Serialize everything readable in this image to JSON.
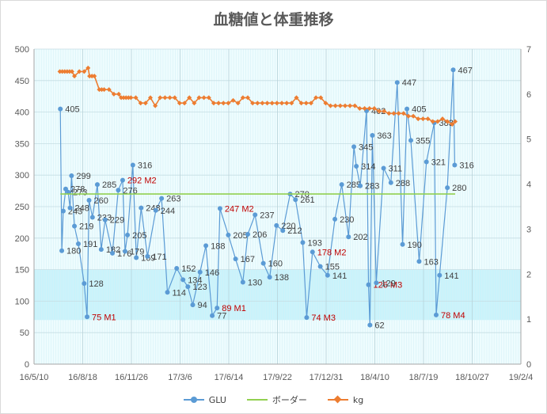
{
  "chart_data": {
    "type": "line",
    "title": "血糖値と体重推移",
    "x_axis": {
      "min": "2016-05-10",
      "max": "2019-02-04",
      "tick_labels": [
        "16/5/10",
        "16/8/18",
        "16/11/26",
        "17/3/6",
        "17/6/14",
        "17/9/22",
        "17/12/31",
        "18/4/10",
        "18/7/19",
        "18/10/27",
        "19/2/4"
      ]
    },
    "y_axis_left": {
      "min": 0,
      "max": 500,
      "ticks": [
        0,
        50,
        100,
        150,
        200,
        250,
        300,
        350,
        400,
        450,
        500
      ]
    },
    "y_axis_right": {
      "min": 0,
      "max": 7,
      "ticks": [
        0,
        1,
        2,
        3,
        4,
        5,
        6,
        7
      ]
    },
    "shaded_band": {
      "from": 70,
      "to": 150,
      "color": "#c9f3fb"
    },
    "plot_background": "#eefcfe",
    "grid": true,
    "legend_position": "bottom",
    "series": [
      {
        "name": "GLU",
        "axis": "left",
        "color": "#5b9bd5",
        "points": [
          {
            "x": "2016-07-03",
            "y": 405,
            "label": "405"
          },
          {
            "x": "2016-07-06",
            "y": 180,
            "label": "180"
          },
          {
            "x": "2016-07-09",
            "y": 243,
            "label": "243"
          },
          {
            "x": "2016-07-14",
            "y": 278,
            "label": "278"
          },
          {
            "x": "2016-07-19",
            "y": 273,
            "label": "273"
          },
          {
            "x": "2016-07-23",
            "y": 248,
            "label": "248"
          },
          {
            "x": "2016-07-26",
            "y": 299,
            "label": "299"
          },
          {
            "x": "2016-08-01",
            "y": 219,
            "label": "219"
          },
          {
            "x": "2016-08-09",
            "y": 191,
            "label": "191"
          },
          {
            "x": "2016-08-21",
            "y": 128,
            "label": "128"
          },
          {
            "x": "2016-08-27",
            "y": 75,
            "label": "75 M1",
            "note": true
          },
          {
            "x": "2016-08-31",
            "y": 260,
            "label": "260"
          },
          {
            "x": "2016-09-07",
            "y": 233,
            "label": "233"
          },
          {
            "x": "2016-09-17",
            "y": 285,
            "label": "285"
          },
          {
            "x": "2016-09-25",
            "y": 182,
            "label": "182"
          },
          {
            "x": "2016-10-03",
            "y": 229,
            "label": "229"
          },
          {
            "x": "2016-10-18",
            "y": 176,
            "label": "176"
          },
          {
            "x": "2016-10-30",
            "y": 276,
            "label": "276"
          },
          {
            "x": "2016-11-08",
            "y": 292,
            "label": "292 M2",
            "note": true
          },
          {
            "x": "2016-11-13",
            "y": 179,
            "label": "179"
          },
          {
            "x": "2016-11-18",
            "y": 205,
            "label": "205"
          },
          {
            "x": "2016-11-29",
            "y": 316,
            "label": "316"
          },
          {
            "x": "2016-12-06",
            "y": 169,
            "label": "169"
          },
          {
            "x": "2016-12-16",
            "y": 248,
            "label": "248"
          },
          {
            "x": "2016-12-29",
            "y": 171,
            "label": "171"
          },
          {
            "x": "2017-01-15",
            "y": 244,
            "label": "244"
          },
          {
            "x": "2017-01-27",
            "y": 263,
            "label": "263"
          },
          {
            "x": "2017-02-08",
            "y": 114,
            "label": "114"
          },
          {
            "x": "2017-02-27",
            "y": 152,
            "label": "152"
          },
          {
            "x": "2017-03-12",
            "y": 134,
            "label": "134"
          },
          {
            "x": "2017-03-22",
            "y": 123,
            "label": "123"
          },
          {
            "x": "2017-04-01",
            "y": 94,
            "label": "94"
          },
          {
            "x": "2017-04-16",
            "y": 146,
            "label": "146"
          },
          {
            "x": "2017-04-28",
            "y": 188,
            "label": "188"
          },
          {
            "x": "2017-05-11",
            "y": 77,
            "label": "77"
          },
          {
            "x": "2017-05-21",
            "y": 89,
            "label": "89 M1",
            "note": true
          },
          {
            "x": "2017-05-27",
            "y": 247,
            "label": "247 M2",
            "note": true
          },
          {
            "x": "2017-06-13",
            "y": 205,
            "label": "205"
          },
          {
            "x": "2017-06-28",
            "y": 167,
            "label": "167"
          },
          {
            "x": "2017-07-13",
            "y": 130,
            "label": "130"
          },
          {
            "x": "2017-07-23",
            "y": 206,
            "label": "206"
          },
          {
            "x": "2017-08-07",
            "y": 237,
            "label": "237"
          },
          {
            "x": "2017-08-24",
            "y": 160,
            "label": "160"
          },
          {
            "x": "2017-09-06",
            "y": 138,
            "label": "138"
          },
          {
            "x": "2017-09-20",
            "y": 220,
            "label": "220"
          },
          {
            "x": "2017-10-03",
            "y": 212,
            "label": "212"
          },
          {
            "x": "2017-10-18",
            "y": 270,
            "label": "270"
          },
          {
            "x": "2017-10-29",
            "y": 261,
            "label": "261"
          },
          {
            "x": "2017-11-13",
            "y": 193,
            "label": "193"
          },
          {
            "x": "2017-11-21",
            "y": 74,
            "label": "74 M3",
            "note": true
          },
          {
            "x": "2017-12-03",
            "y": 178,
            "label": "178 M2",
            "note": true
          },
          {
            "x": "2017-12-19",
            "y": 155,
            "label": "155"
          },
          {
            "x": "2018-01-03",
            "y": 141,
            "label": "141"
          },
          {
            "x": "2018-01-18",
            "y": 230,
            "label": "230"
          },
          {
            "x": "2018-02-01",
            "y": 285,
            "label": "285"
          },
          {
            "x": "2018-02-15",
            "y": 202,
            "label": "202"
          },
          {
            "x": "2018-02-26",
            "y": 345,
            "label": "345"
          },
          {
            "x": "2018-03-03",
            "y": 314,
            "label": "314"
          },
          {
            "x": "2018-03-11",
            "y": 283,
            "label": "283"
          },
          {
            "x": "2018-03-24",
            "y": 402,
            "label": "402"
          },
          {
            "x": "2018-03-28",
            "y": 126,
            "label": "126 M3",
            "note": true
          },
          {
            "x": "2018-03-31",
            "y": 62,
            "label": "62"
          },
          {
            "x": "2018-04-05",
            "y": 363,
            "label": "363"
          },
          {
            "x": "2018-04-13",
            "y": 129,
            "label": "129"
          },
          {
            "x": "2018-04-28",
            "y": 311,
            "label": "311"
          },
          {
            "x": "2018-05-13",
            "y": 288,
            "label": "288"
          },
          {
            "x": "2018-05-26",
            "y": 447,
            "label": "447"
          },
          {
            "x": "2018-06-06",
            "y": 190,
            "label": "190"
          },
          {
            "x": "2018-06-15",
            "y": 405,
            "label": "405"
          },
          {
            "x": "2018-06-23",
            "y": 355,
            "label": "355"
          },
          {
            "x": "2018-07-10",
            "y": 163,
            "label": "163"
          },
          {
            "x": "2018-07-25",
            "y": 321,
            "label": "321"
          },
          {
            "x": "2018-08-10",
            "y": 383,
            "label": "383"
          },
          {
            "x": "2018-08-14",
            "y": 78,
            "label": "78 M4",
            "note": true
          },
          {
            "x": "2018-08-21",
            "y": 141,
            "label": "141"
          },
          {
            "x": "2018-09-06",
            "y": 280,
            "label": "280"
          },
          {
            "x": "2018-09-18",
            "y": 467,
            "label": "467"
          },
          {
            "x": "2018-09-21",
            "y": 316,
            "label": "316"
          }
        ]
      },
      {
        "name": "ボーダー",
        "axis": "left",
        "color": "#92d050",
        "points": [
          {
            "x": "2016-07-03",
            "y": 270
          },
          {
            "x": "2018-09-22",
            "y": 270
          }
        ]
      },
      {
        "name": "kg",
        "axis": "right",
        "color": "#ed7d31",
        "points": [
          {
            "x": "2016-07-02",
            "y": 6.5
          },
          {
            "x": "2016-07-07",
            "y": 6.5
          },
          {
            "x": "2016-07-12",
            "y": 6.5
          },
          {
            "x": "2016-07-17",
            "y": 6.5
          },
          {
            "x": "2016-07-22",
            "y": 6.5
          },
          {
            "x": "2016-07-27",
            "y": 6.5
          },
          {
            "x": "2016-08-01",
            "y": 6.4
          },
          {
            "x": "2016-08-11",
            "y": 6.5
          },
          {
            "x": "2016-08-21",
            "y": 6.5
          },
          {
            "x": "2016-08-29",
            "y": 6.58
          },
          {
            "x": "2016-09-01",
            "y": 6.4
          },
          {
            "x": "2016-09-06",
            "y": 6.4
          },
          {
            "x": "2016-09-11",
            "y": 6.4
          },
          {
            "x": "2016-09-21",
            "y": 6.1
          },
          {
            "x": "2016-09-26",
            "y": 6.1
          },
          {
            "x": "2016-10-01",
            "y": 6.1
          },
          {
            "x": "2016-10-11",
            "y": 6.1
          },
          {
            "x": "2016-10-21",
            "y": 6.0
          },
          {
            "x": "2016-10-31",
            "y": 6.0
          },
          {
            "x": "2016-11-05",
            "y": 5.92
          },
          {
            "x": "2016-11-10",
            "y": 5.92
          },
          {
            "x": "2016-11-15",
            "y": 5.92
          },
          {
            "x": "2016-11-20",
            "y": 5.92
          },
          {
            "x": "2016-11-25",
            "y": 5.92
          },
          {
            "x": "2016-12-05",
            "y": 5.92
          },
          {
            "x": "2016-12-15",
            "y": 5.8
          },
          {
            "x": "2016-12-25",
            "y": 5.8
          },
          {
            "x": "2017-01-04",
            "y": 5.92
          },
          {
            "x": "2017-01-14",
            "y": 5.74
          },
          {
            "x": "2017-01-24",
            "y": 5.92
          },
          {
            "x": "2017-02-03",
            "y": 5.92
          },
          {
            "x": "2017-02-13",
            "y": 5.92
          },
          {
            "x": "2017-02-23",
            "y": 5.92
          },
          {
            "x": "2017-03-05",
            "y": 5.8
          },
          {
            "x": "2017-03-15",
            "y": 5.8
          },
          {
            "x": "2017-03-25",
            "y": 5.92
          },
          {
            "x": "2017-04-04",
            "y": 5.8
          },
          {
            "x": "2017-04-14",
            "y": 5.92
          },
          {
            "x": "2017-04-24",
            "y": 5.92
          },
          {
            "x": "2017-05-04",
            "y": 5.92
          },
          {
            "x": "2017-05-14",
            "y": 5.8
          },
          {
            "x": "2017-05-24",
            "y": 5.8
          },
          {
            "x": "2017-06-03",
            "y": 5.8
          },
          {
            "x": "2017-06-13",
            "y": 5.8
          },
          {
            "x": "2017-06-23",
            "y": 5.86
          },
          {
            "x": "2017-07-03",
            "y": 5.8
          },
          {
            "x": "2017-07-13",
            "y": 5.92
          },
          {
            "x": "2017-07-23",
            "y": 5.92
          },
          {
            "x": "2017-08-02",
            "y": 5.8
          },
          {
            "x": "2017-08-12",
            "y": 5.8
          },
          {
            "x": "2017-08-22",
            "y": 5.8
          },
          {
            "x": "2017-09-01",
            "y": 5.8
          },
          {
            "x": "2017-09-11",
            "y": 5.8
          },
          {
            "x": "2017-09-21",
            "y": 5.8
          },
          {
            "x": "2017-10-01",
            "y": 5.8
          },
          {
            "x": "2017-10-11",
            "y": 5.8
          },
          {
            "x": "2017-10-21",
            "y": 5.8
          },
          {
            "x": "2017-10-31",
            "y": 5.92
          },
          {
            "x": "2017-11-10",
            "y": 5.8
          },
          {
            "x": "2017-11-20",
            "y": 5.8
          },
          {
            "x": "2017-11-30",
            "y": 5.8
          },
          {
            "x": "2017-12-10",
            "y": 5.92
          },
          {
            "x": "2017-12-20",
            "y": 5.92
          },
          {
            "x": "2017-12-30",
            "y": 5.8
          },
          {
            "x": "2018-01-09",
            "y": 5.74
          },
          {
            "x": "2018-01-19",
            "y": 5.74
          },
          {
            "x": "2018-01-29",
            "y": 5.74
          },
          {
            "x": "2018-02-08",
            "y": 5.74
          },
          {
            "x": "2018-02-18",
            "y": 5.74
          },
          {
            "x": "2018-02-28",
            "y": 5.74
          },
          {
            "x": "2018-03-10",
            "y": 5.68
          },
          {
            "x": "2018-03-20",
            "y": 5.68
          },
          {
            "x": "2018-03-30",
            "y": 5.68
          },
          {
            "x": "2018-04-09",
            "y": 5.68
          },
          {
            "x": "2018-04-19",
            "y": 5.62
          },
          {
            "x": "2018-04-29",
            "y": 5.62
          },
          {
            "x": "2018-05-09",
            "y": 5.57
          },
          {
            "x": "2018-05-19",
            "y": 5.57
          },
          {
            "x": "2018-05-29",
            "y": 5.57
          },
          {
            "x": "2018-06-08",
            "y": 5.57
          },
          {
            "x": "2018-06-18",
            "y": 5.51
          },
          {
            "x": "2018-06-28",
            "y": 5.51
          },
          {
            "x": "2018-07-08",
            "y": 5.45
          },
          {
            "x": "2018-07-18",
            "y": 5.45
          },
          {
            "x": "2018-07-28",
            "y": 5.45
          },
          {
            "x": "2018-08-07",
            "y": 5.39
          },
          {
            "x": "2018-08-17",
            "y": 5.39
          },
          {
            "x": "2018-08-27",
            "y": 5.45
          },
          {
            "x": "2018-09-06",
            "y": 5.39
          },
          {
            "x": "2018-09-16",
            "y": 5.33
          },
          {
            "x": "2018-09-22",
            "y": 5.39
          }
        ]
      }
    ]
  },
  "legend": {
    "glu": "GLU",
    "border": "ボーダー",
    "kg": "kg"
  }
}
